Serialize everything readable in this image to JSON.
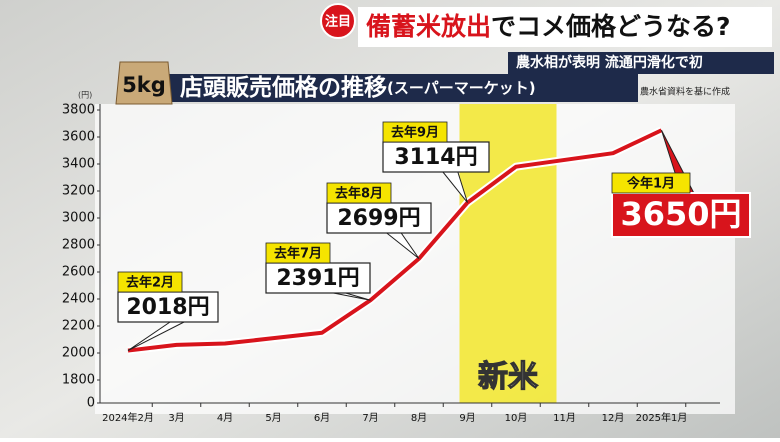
{
  "badge": "注目",
  "headline": [
    "備蓄米放出",
    "でコメ価格どうなる?"
  ],
  "subheadline": "農水相が表明 流通円滑化で初",
  "chart_data": {
    "type": "line",
    "title": "店頭販売価格の推移",
    "subtitle": "(スーパーマーケット)",
    "bag_label": "5kg",
    "source": "農水省資料を基に作成",
    "unit": "(円)",
    "categories": [
      "2024年2月",
      "3月",
      "4月",
      "5月",
      "6月",
      "7月",
      "8月",
      "9月",
      "10月",
      "11月",
      "12月",
      "2025年1月"
    ],
    "series": [
      {
        "name": "店頭販売価格",
        "color": "#d8141c",
        "values": [
          2018,
          2060,
          2070,
          2110,
          2150,
          2391,
          2699,
          3114,
          3380,
          3430,
          3480,
          3650
        ],
        "value_labels": [
          "2018円",
          null,
          null,
          null,
          null,
          "2391円",
          "2699円",
          "3114円",
          null,
          null,
          null,
          "3650円"
        ],
        "point_labels": [
          "去年2月",
          null,
          null,
          null,
          null,
          "去年7月",
          "去年8月",
          "去年9月",
          null,
          null,
          null,
          "今年1月"
        ]
      }
    ],
    "band_label": "新米",
    "ylim": [
      0,
      3800
    ],
    "yticks": [
      0,
      1800,
      2000,
      2200,
      2400,
      2600,
      2800,
      3000,
      3200,
      3400,
      3600,
      3800
    ],
    "grid": false
  }
}
